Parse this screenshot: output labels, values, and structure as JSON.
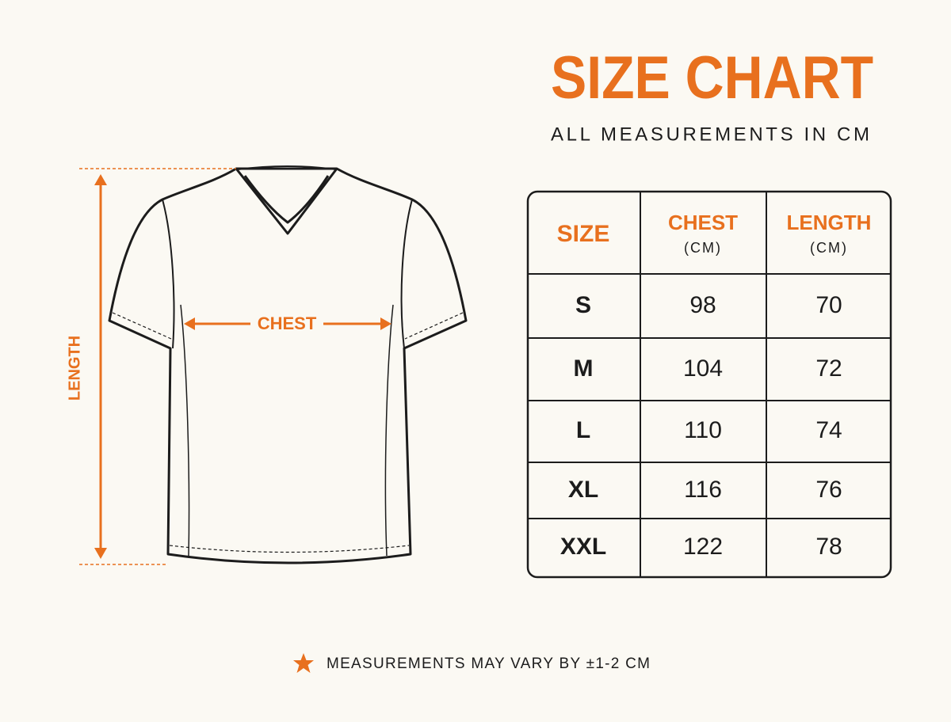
{
  "header": {
    "title": "SIZE CHART",
    "subtitle": "ALL MEASUREMENTS IN CM"
  },
  "diagram": {
    "length_label": "LENGTH",
    "chest_label": "CHEST"
  },
  "table": {
    "columns": [
      {
        "label": "SIZE"
      },
      {
        "label": "CHEST",
        "unit": "(CM)"
      },
      {
        "label": "LENGTH",
        "unit": "(CM)"
      }
    ],
    "rows": [
      [
        "S",
        98,
        70
      ],
      [
        "M",
        104,
        72
      ],
      [
        "L",
        110,
        74
      ],
      [
        "XL",
        116,
        76
      ],
      [
        "XXL",
        122,
        78
      ]
    ]
  },
  "footnote": "MEASUREMENTS MAY VARY BY ±1-2 CM"
}
